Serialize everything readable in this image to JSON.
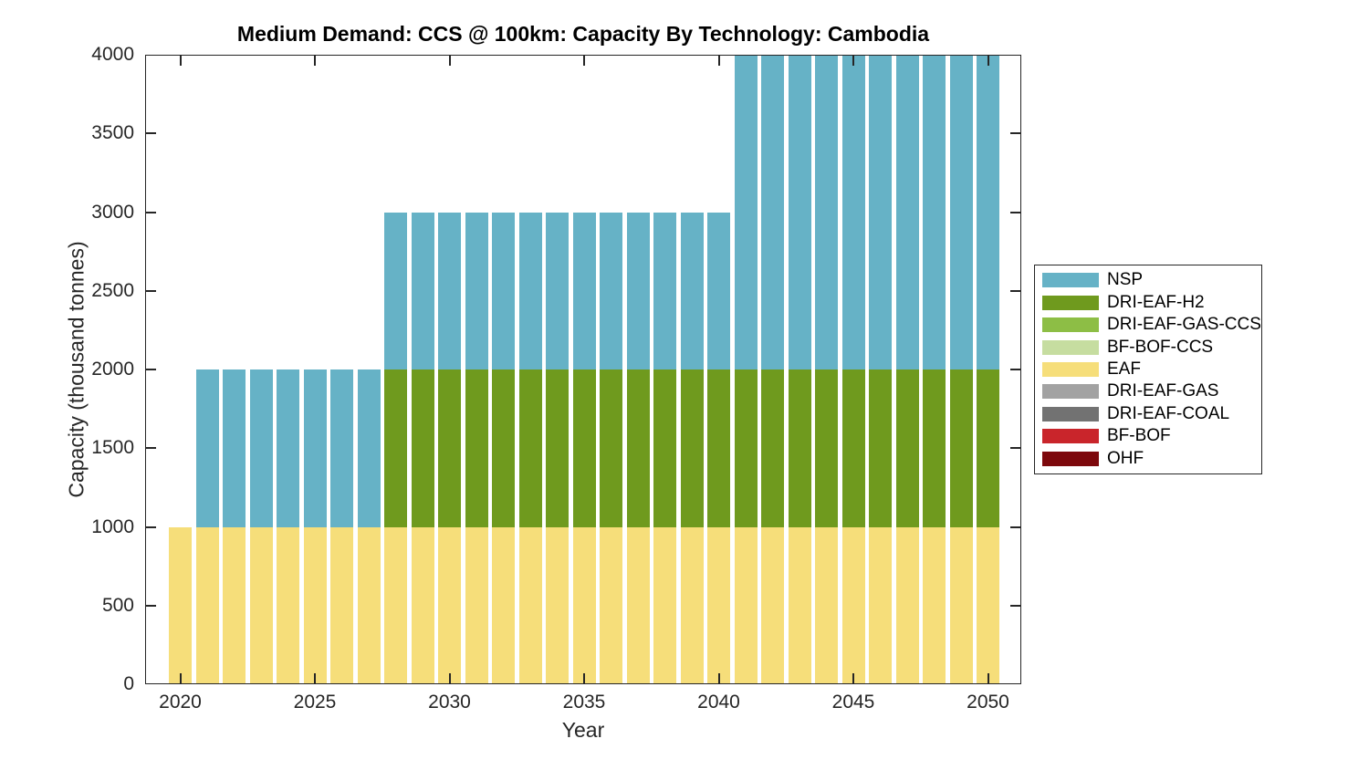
{
  "chart_data": {
    "type": "bar",
    "stacked": true,
    "title": "Medium Demand: CCS @ 100km: Capacity By Technology: Cambodia",
    "xlabel": "Year",
    "ylabel": "Capacity (thousand tonnes)",
    "ylim": [
      0,
      4000
    ],
    "yticks": [
      0,
      500,
      1000,
      1500,
      2000,
      2500,
      3000,
      3500,
      4000
    ],
    "xticks": [
      2020,
      2025,
      2030,
      2035,
      2040,
      2045,
      2050
    ],
    "grid": false,
    "legend_position": "right-outside",
    "categories": [
      2020,
      2021,
      2022,
      2023,
      2024,
      2025,
      2026,
      2027,
      2028,
      2029,
      2030,
      2031,
      2032,
      2033,
      2034,
      2035,
      2036,
      2037,
      2038,
      2039,
      2040,
      2041,
      2042,
      2043,
      2044,
      2045,
      2046,
      2047,
      2048,
      2049,
      2050
    ],
    "stack_order_bottom_to_top": [
      "EAF",
      "DRI-EAF-H2",
      "NSP"
    ],
    "series": [
      {
        "name": "NSP",
        "color": "#66B2C6",
        "values": [
          0,
          1000,
          1000,
          1000,
          1000,
          1000,
          1000,
          1000,
          1000,
          1000,
          1000,
          1000,
          1000,
          1000,
          1000,
          1000,
          1000,
          1000,
          1000,
          1000,
          1000,
          2000,
          2000,
          2000,
          2000,
          2000,
          2000,
          2000,
          2000,
          2000,
          2000
        ]
      },
      {
        "name": "DRI-EAF-H2",
        "color": "#6F9A1E",
        "values": [
          0,
          0,
          0,
          0,
          0,
          0,
          0,
          0,
          1000,
          1000,
          1000,
          1000,
          1000,
          1000,
          1000,
          1000,
          1000,
          1000,
          1000,
          1000,
          1000,
          1000,
          1000,
          1000,
          1000,
          1000,
          1000,
          1000,
          1000,
          1000,
          1000
        ]
      },
      {
        "name": "DRI-EAF-GAS-CCS",
        "color": "#8DBE45",
        "values": [
          0,
          0,
          0,
          0,
          0,
          0,
          0,
          0,
          0,
          0,
          0,
          0,
          0,
          0,
          0,
          0,
          0,
          0,
          0,
          0,
          0,
          0,
          0,
          0,
          0,
          0,
          0,
          0,
          0,
          0,
          0
        ]
      },
      {
        "name": "BF-BOF-CCS",
        "color": "#C6DDA0",
        "values": [
          0,
          0,
          0,
          0,
          0,
          0,
          0,
          0,
          0,
          0,
          0,
          0,
          0,
          0,
          0,
          0,
          0,
          0,
          0,
          0,
          0,
          0,
          0,
          0,
          0,
          0,
          0,
          0,
          0,
          0,
          0
        ]
      },
      {
        "name": "EAF",
        "color": "#F6DE7A",
        "values": [
          1000,
          1000,
          1000,
          1000,
          1000,
          1000,
          1000,
          1000,
          1000,
          1000,
          1000,
          1000,
          1000,
          1000,
          1000,
          1000,
          1000,
          1000,
          1000,
          1000,
          1000,
          1000,
          1000,
          1000,
          1000,
          1000,
          1000,
          1000,
          1000,
          1000,
          1000
        ]
      },
      {
        "name": "DRI-EAF-GAS",
        "color": "#A2A2A2",
        "values": [
          0,
          0,
          0,
          0,
          0,
          0,
          0,
          0,
          0,
          0,
          0,
          0,
          0,
          0,
          0,
          0,
          0,
          0,
          0,
          0,
          0,
          0,
          0,
          0,
          0,
          0,
          0,
          0,
          0,
          0,
          0
        ]
      },
      {
        "name": "DRI-EAF-COAL",
        "color": "#727272",
        "values": [
          0,
          0,
          0,
          0,
          0,
          0,
          0,
          0,
          0,
          0,
          0,
          0,
          0,
          0,
          0,
          0,
          0,
          0,
          0,
          0,
          0,
          0,
          0,
          0,
          0,
          0,
          0,
          0,
          0,
          0,
          0
        ]
      },
      {
        "name": "BF-BOF",
        "color": "#C9252B",
        "values": [
          0,
          0,
          0,
          0,
          0,
          0,
          0,
          0,
          0,
          0,
          0,
          0,
          0,
          0,
          0,
          0,
          0,
          0,
          0,
          0,
          0,
          0,
          0,
          0,
          0,
          0,
          0,
          0,
          0,
          0,
          0
        ]
      },
      {
        "name": "OHF",
        "color": "#7D080C",
        "values": [
          0,
          0,
          0,
          0,
          0,
          0,
          0,
          0,
          0,
          0,
          0,
          0,
          0,
          0,
          0,
          0,
          0,
          0,
          0,
          0,
          0,
          0,
          0,
          0,
          0,
          0,
          0,
          0,
          0,
          0,
          0
        ]
      }
    ],
    "totals_by_period": {
      "2020": 1000,
      "2021-2027": 2000,
      "2028-2040": 3000,
      "2041-2050": 4000
    }
  }
}
